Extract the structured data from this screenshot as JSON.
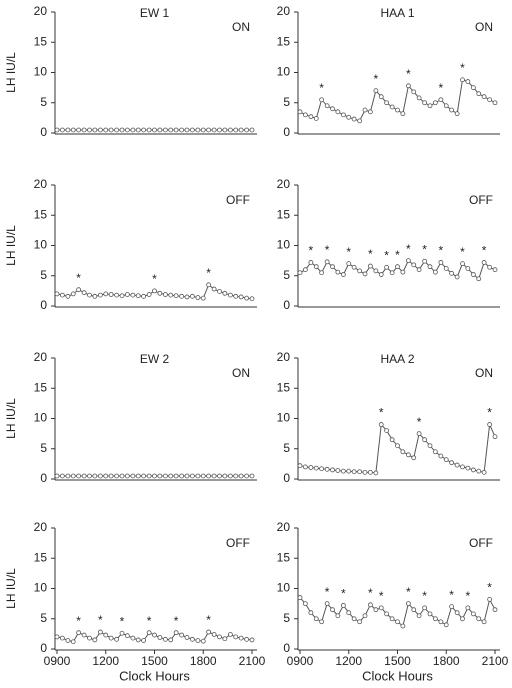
{
  "chart_data": [
    {
      "type": "line",
      "title": "EW 1",
      "annotation": "ON",
      "ylabel": "LH IU/L",
      "color": "#555555",
      "x": [
        9,
        9.33,
        9.67,
        10,
        10.33,
        10.67,
        11,
        11.33,
        11.67,
        12,
        12.33,
        12.67,
        13,
        13.33,
        13.67,
        14,
        14.33,
        14.67,
        15,
        15.33,
        15.67,
        16,
        16.33,
        16.67,
        17,
        17.33,
        17.67,
        18,
        18.33,
        18.67,
        19,
        19.33,
        19.67,
        20,
        20.33,
        20.67,
        21
      ],
      "values": [
        0.5,
        0.5,
        0.5,
        0.5,
        0.5,
        0.5,
        0.5,
        0.5,
        0.5,
        0.5,
        0.5,
        0.5,
        0.5,
        0.5,
        0.5,
        0.5,
        0.5,
        0.5,
        0.5,
        0.5,
        0.5,
        0.5,
        0.5,
        0.5,
        0.5,
        0.5,
        0.5,
        0.5,
        0.5,
        0.5,
        0.5,
        0.5,
        0.5,
        0.5,
        0.5,
        0.5,
        0.5
      ],
      "xlim": [
        9,
        21
      ],
      "ylim": [
        0,
        20
      ],
      "yticks": [
        0,
        5,
        10,
        15,
        20
      ]
    },
    {
      "type": "line",
      "title": "HAA 1",
      "annotation": "ON",
      "color": "#555555",
      "x": [
        9,
        9.33,
        9.67,
        10,
        10.33,
        10.67,
        11,
        11.33,
        11.67,
        12,
        12.33,
        12.67,
        13,
        13.33,
        13.67,
        14,
        14.33,
        14.67,
        15,
        15.33,
        15.67,
        16,
        16.33,
        16.67,
        17,
        17.33,
        17.67,
        18,
        18.33,
        18.67,
        19,
        19.33,
        19.67,
        20,
        20.33,
        20.67,
        21
      ],
      "values": [
        3.5,
        3.0,
        2.7,
        2.4,
        5.5,
        4.5,
        4.0,
        3.5,
        3.0,
        2.6,
        2.3,
        2.0,
        3.8,
        3.5,
        7.0,
        6.0,
        5.0,
        4.3,
        3.8,
        3.2,
        7.8,
        6.8,
        5.8,
        5.0,
        4.5,
        5.0,
        5.5,
        4.5,
        3.8,
        3.2,
        8.8,
        8.5,
        7.5,
        6.5,
        6.0,
        5.5,
        5.0
      ],
      "peak_marker": {
        "label": "*",
        "x": [
          10.33,
          13.67,
          15.67,
          17.67,
          19.0
        ]
      },
      "xlim": [
        9,
        21
      ],
      "ylim": [
        0,
        20
      ],
      "yticks": [
        0,
        5,
        10,
        15,
        20
      ]
    },
    {
      "type": "line",
      "annotation": "OFF",
      "ylabel": "LH IU/L",
      "color": "#555555",
      "x": [
        9,
        9.33,
        9.67,
        10,
        10.33,
        10.67,
        11,
        11.33,
        11.67,
        12,
        12.33,
        12.67,
        13,
        13.33,
        13.67,
        14,
        14.33,
        14.67,
        15,
        15.33,
        15.67,
        16,
        16.33,
        16.67,
        17,
        17.33,
        17.67,
        18,
        18.33,
        18.67,
        19,
        19.33,
        19.67,
        20,
        20.33,
        20.67,
        21
      ],
      "values": [
        2.0,
        1.8,
        1.6,
        2.0,
        2.7,
        2.2,
        1.8,
        1.6,
        1.8,
        2.0,
        1.9,
        1.8,
        1.7,
        1.9,
        1.8,
        1.7,
        1.6,
        1.9,
        2.5,
        2.1,
        1.9,
        1.8,
        1.7,
        1.6,
        1.5,
        1.6,
        1.4,
        1.3,
        3.5,
        2.8,
        2.4,
        2.1,
        1.8,
        1.6,
        1.5,
        1.3,
        1.2
      ],
      "peak_marker": {
        "label": "*",
        "x": [
          10.33,
          15.0,
          18.33
        ]
      },
      "xlim": [
        9,
        21
      ],
      "ylim": [
        0,
        20
      ],
      "yticks": [
        0,
        5,
        10,
        15,
        20
      ]
    },
    {
      "type": "line",
      "annotation": "OFF",
      "color": "#555555",
      "x": [
        9,
        9.33,
        9.67,
        10,
        10.33,
        10.67,
        11,
        11.33,
        11.67,
        12,
        12.33,
        12.67,
        13,
        13.33,
        13.67,
        14,
        14.33,
        14.67,
        15,
        15.33,
        15.67,
        16,
        16.33,
        16.67,
        17,
        17.33,
        17.67,
        18,
        18.33,
        18.67,
        19,
        19.33,
        19.67,
        20,
        20.33,
        20.67,
        21
      ],
      "values": [
        5.5,
        6.0,
        7.2,
        6.5,
        5.5,
        7.3,
        6.5,
        5.6,
        5.2,
        7.0,
        6.4,
        5.8,
        5.3,
        6.6,
        5.8,
        5.2,
        6.4,
        5.5,
        6.5,
        5.6,
        7.5,
        6.8,
        6.0,
        7.4,
        6.5,
        5.6,
        7.2,
        6.2,
        5.4,
        4.8,
        7.0,
        6.2,
        5.2,
        4.5,
        7.2,
        6.4,
        6.0
      ],
      "peak_marker": {
        "label": "*",
        "x": [
          9.67,
          10.67,
          12.0,
          13.33,
          14.33,
          15.0,
          15.67,
          16.67,
          17.67,
          19.0,
          20.33
        ]
      },
      "xlim": [
        9,
        21
      ],
      "ylim": [
        0,
        20
      ],
      "yticks": [
        0,
        5,
        10,
        15,
        20
      ]
    },
    {
      "type": "line",
      "title": "EW 2",
      "annotation": "ON",
      "ylabel": "LH IU/L",
      "color": "#555555",
      "x": [
        9,
        9.33,
        9.67,
        10,
        10.33,
        10.67,
        11,
        11.33,
        11.67,
        12,
        12.33,
        12.67,
        13,
        13.33,
        13.67,
        14,
        14.33,
        14.67,
        15,
        15.33,
        15.67,
        16,
        16.33,
        16.67,
        17,
        17.33,
        17.67,
        18,
        18.33,
        18.67,
        19,
        19.33,
        19.67,
        20,
        20.33,
        20.67,
        21
      ],
      "values": [
        0.5,
        0.5,
        0.5,
        0.5,
        0.5,
        0.5,
        0.5,
        0.5,
        0.5,
        0.5,
        0.5,
        0.5,
        0.5,
        0.5,
        0.5,
        0.5,
        0.5,
        0.5,
        0.5,
        0.5,
        0.5,
        0.5,
        0.5,
        0.5,
        0.5,
        0.5,
        0.5,
        0.5,
        0.5,
        0.5,
        0.5,
        0.5,
        0.5,
        0.5,
        0.5,
        0.5,
        0.5
      ],
      "xlim": [
        9,
        21
      ],
      "ylim": [
        0,
        20
      ],
      "yticks": [
        0,
        5,
        10,
        15,
        20
      ]
    },
    {
      "type": "line",
      "title": "HAA 2",
      "annotation": "ON",
      "color": "#555555",
      "x": [
        9,
        9.33,
        9.67,
        10,
        10.33,
        10.67,
        11,
        11.33,
        11.67,
        12,
        12.33,
        12.67,
        13,
        13.33,
        13.67,
        14,
        14.33,
        14.67,
        15,
        15.33,
        15.67,
        16,
        16.33,
        16.67,
        17,
        17.33,
        17.67,
        18,
        18.33,
        18.67,
        19,
        19.33,
        19.67,
        20,
        20.33,
        20.67,
        21
      ],
      "values": [
        2.2,
        2.0,
        1.9,
        1.8,
        1.7,
        1.6,
        1.5,
        1.4,
        1.3,
        1.3,
        1.2,
        1.2,
        1.1,
        1.1,
        1.0,
        9.0,
        8.0,
        6.5,
        5.5,
        4.5,
        4.0,
        3.5,
        7.5,
        6.5,
        5.5,
        4.5,
        3.8,
        3.2,
        2.7,
        2.3,
        2.0,
        1.8,
        1.5,
        1.3,
        1.1,
        9.0,
        7.0
      ],
      "peak_marker": {
        "label": "*",
        "x": [
          14.0,
          16.33,
          20.67
        ]
      },
      "xlim": [
        9,
        21
      ],
      "ylim": [
        0,
        20
      ],
      "yticks": [
        0,
        5,
        10,
        15,
        20
      ]
    },
    {
      "type": "line",
      "annotation": "OFF",
      "ylabel": "LH IU/L",
      "xlabel": "Clock Hours",
      "color": "#555555",
      "x": [
        9,
        9.33,
        9.67,
        10,
        10.33,
        10.67,
        11,
        11.33,
        11.67,
        12,
        12.33,
        12.67,
        13,
        13.33,
        13.67,
        14,
        14.33,
        14.67,
        15,
        15.33,
        15.67,
        16,
        16.33,
        16.67,
        17,
        17.33,
        17.67,
        18,
        18.33,
        18.67,
        19,
        19.33,
        19.67,
        20,
        20.33,
        20.67,
        21
      ],
      "values": [
        2.0,
        1.8,
        1.4,
        1.2,
        2.7,
        2.3,
        1.8,
        1.5,
        2.8,
        2.3,
        1.8,
        1.6,
        2.6,
        2.2,
        1.8,
        1.5,
        1.4,
        2.7,
        2.3,
        1.9,
        1.6,
        1.5,
        2.7,
        2.3,
        1.9,
        1.6,
        1.4,
        1.3,
        2.8,
        2.4,
        2.0,
        1.7,
        2.4,
        2.0,
        1.8,
        1.6,
        1.5
      ],
      "peak_marker": {
        "label": "*",
        "x": [
          10.33,
          11.67,
          13.0,
          14.67,
          16.33,
          18.33
        ]
      },
      "xlim": [
        9,
        21
      ],
      "xticks": [
        {
          "value": 9,
          "label": "0900"
        },
        {
          "value": 12,
          "label": "1200"
        },
        {
          "value": 15,
          "label": "1500"
        },
        {
          "value": 18,
          "label": "1800"
        },
        {
          "value": 21,
          "label": "2100"
        }
      ],
      "ylim": [
        0,
        20
      ],
      "yticks": [
        0,
        5,
        10,
        15,
        20
      ]
    },
    {
      "type": "line",
      "annotation": "OFF",
      "xlabel": "Clock Hours",
      "color": "#555555",
      "x": [
        9,
        9.33,
        9.67,
        10,
        10.33,
        10.67,
        11,
        11.33,
        11.67,
        12,
        12.33,
        12.67,
        13,
        13.33,
        13.67,
        14,
        14.33,
        14.67,
        15,
        15.33,
        15.67,
        16,
        16.33,
        16.67,
        17,
        17.33,
        17.67,
        18,
        18.33,
        18.67,
        19,
        19.33,
        19.67,
        20,
        20.33,
        20.67,
        21
      ],
      "values": [
        8.5,
        7.5,
        6.0,
        5.0,
        4.5,
        7.5,
        6.5,
        5.5,
        7.2,
        6.0,
        5.0,
        4.5,
        5.5,
        7.3,
        6.5,
        6.8,
        5.8,
        5.0,
        4.5,
        3.8,
        7.5,
        6.5,
        5.5,
        6.8,
        5.8,
        5.0,
        4.5,
        4.0,
        7.0,
        6.0,
        5.0,
        6.8,
        5.8,
        5.0,
        4.5,
        8.2,
        6.5
      ],
      "peak_marker": {
        "label": "*",
        "x": [
          10.67,
          11.67,
          13.33,
          14.0,
          15.67,
          16.67,
          18.33,
          19.33,
          20.67
        ]
      },
      "xlim": [
        9,
        21
      ],
      "xticks": [
        {
          "value": 9,
          "label": "0900"
        },
        {
          "value": 12,
          "label": "1200"
        },
        {
          "value": 15,
          "label": "1500"
        },
        {
          "value": 18,
          "label": "1800"
        },
        {
          "value": 21,
          "label": "2100"
        }
      ],
      "ylim": [
        0,
        20
      ],
      "yticks": [
        0,
        5,
        10,
        15,
        20
      ]
    }
  ]
}
